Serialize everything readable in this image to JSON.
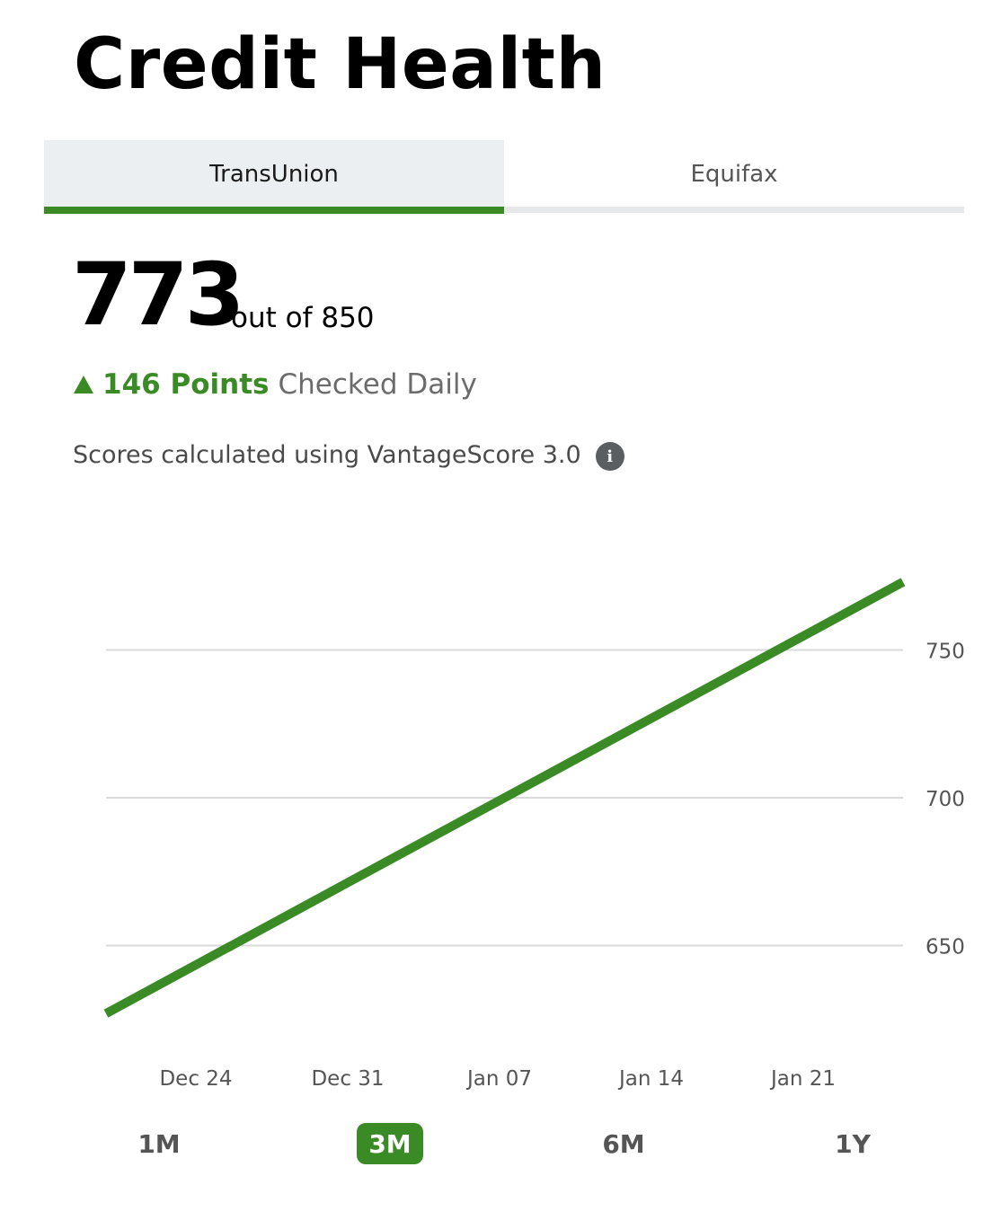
{
  "page": {
    "title": "Credit Health"
  },
  "tabs": [
    {
      "label": "TransUnion",
      "active": true
    },
    {
      "label": "Equifax",
      "active": false
    }
  ],
  "score": {
    "value": "773",
    "out_of": "out of 850",
    "change_points": "146 Points",
    "change_direction": "up",
    "frequency": "Checked Daily",
    "model_note": "Scores calculated using VantageScore 3.0",
    "info_icon": "info-icon"
  },
  "colors": {
    "accent_green": "#3a8a25",
    "tab_active_bg": "#eceff1",
    "gridline": "#d9d9d9"
  },
  "chart_data": {
    "type": "line",
    "x": [
      "Dec 24",
      "Dec 31",
      "Jan 07",
      "Jan 14",
      "Jan 21"
    ],
    "series": [
      {
        "points": [
          {
            "date": "Dec 18",
            "value": 627
          },
          {
            "date": "Jan 26",
            "value": 773
          }
        ]
      }
    ],
    "y_ticks": [
      650,
      700,
      750
    ],
    "ylim": [
      620,
      780
    ],
    "grid": true,
    "y_axis_side": "right"
  },
  "range_buttons": [
    {
      "label": "1M",
      "active": false
    },
    {
      "label": "3M",
      "active": true
    },
    {
      "label": "6M",
      "active": false
    },
    {
      "label": "1Y",
      "active": false
    }
  ]
}
